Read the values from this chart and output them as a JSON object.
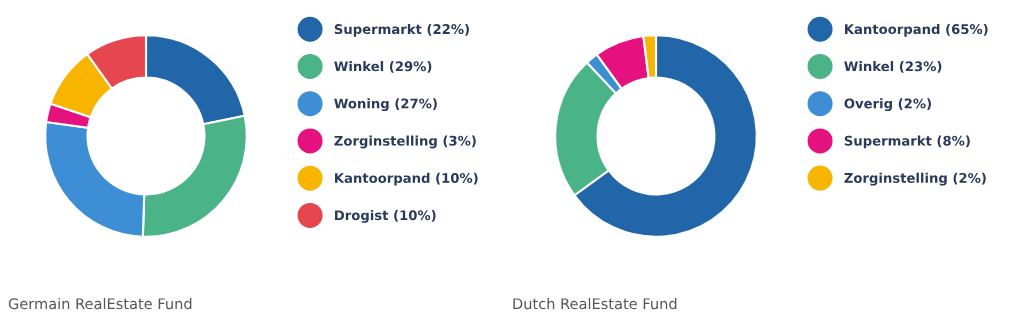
{
  "chart_data": [
    {
      "type": "donut",
      "title": "Germain RealEstate Fund",
      "legend": "right",
      "categories": [
        "Supermarkt (22%)",
        "Winkel (29%)",
        "Woning (27%)",
        "Zorginstelling (3%)",
        "Kantoorpand (10%)",
        "Drogist (10%)"
      ],
      "values": [
        22,
        29,
        27,
        3,
        10,
        10
      ],
      "colors": [
        "#2166a8",
        "#4ab387",
        "#3e8ed6",
        "#e5117f",
        "#f7b500",
        "#e5464f"
      ]
    },
    {
      "type": "donut",
      "title": "Dutch RealEstate Fund",
      "legend": "right",
      "categories": [
        "Kantoorpand (65%)",
        "Winkel (23%)",
        "Overig (2%)",
        "Supermarkt (8%)",
        "Zorginstelling (2%)"
      ],
      "values": [
        65,
        23,
        2,
        8,
        2
      ],
      "colors": [
        "#2166a8",
        "#4ab387",
        "#3e8ed6",
        "#e5117f",
        "#f7b500"
      ]
    }
  ]
}
